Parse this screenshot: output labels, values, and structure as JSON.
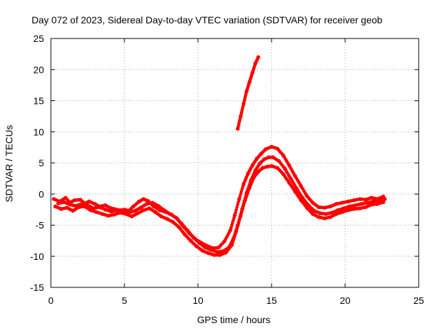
{
  "chart_data": {
    "type": "scatter",
    "title": "Day 072 of 2023, Sidereal Day-to-day VTEC variation (SDTVAR) for receiver geob",
    "xlabel": "GPS time / hours",
    "ylabel": "SDTVAR / TECUs",
    "xlim": [
      0,
      25
    ],
    "ylim": [
      -15,
      25
    ],
    "xticks": [
      0,
      5,
      10,
      15,
      20,
      25
    ],
    "yticks": [
      -15,
      -10,
      -5,
      0,
      5,
      10,
      15,
      20,
      25
    ],
    "grid": true,
    "series": [
      {
        "name": "SDTVAR",
        "color": "#ff0000",
        "segments": [
          {
            "x": [
              0.2,
              0.6,
              1.0,
              1.3,
              1.6,
              2.0,
              2.3,
              2.6,
              3.0,
              3.3,
              3.7,
              4.0,
              4.3,
              4.7,
              5.0,
              5.3,
              5.6,
              6.0,
              6.3,
              6.6,
              7.0,
              7.4,
              7.8,
              8.2,
              8.6,
              9.0,
              9.4,
              9.8,
              10.2,
              10.6,
              11.0,
              11.4,
              11.8,
              12.2,
              12.5,
              12.8,
              13.1,
              13.4,
              13.7,
              14.0,
              14.3,
              14.6,
              15.0,
              15.4,
              15.8,
              16.2,
              16.6,
              17.0,
              17.4,
              17.8,
              18.2,
              18.6,
              19.0,
              19.4,
              19.8,
              20.2,
              20.6,
              21.0,
              21.4,
              21.8,
              22.2,
              22.6
            ],
            "y": [
              -0.8,
              -1.2,
              -0.6,
              -1.4,
              -1.0,
              -0.9,
              -1.5,
              -1.2,
              -1.6,
              -2.0,
              -1.8,
              -2.2,
              -2.4,
              -2.6,
              -2.5,
              -2.7,
              -2.0,
              -1.2,
              -0.8,
              -1.1,
              -2.0,
              -2.6,
              -2.9,
              -3.3,
              -4.0,
              -5.2,
              -6.3,
              -7.2,
              -7.8,
              -8.3,
              -8.7,
              -8.6,
              -7.6,
              -5.8,
              -3.4,
              -0.8,
              1.6,
              3.3,
              4.6,
              5.7,
              6.5,
              7.2,
              7.6,
              7.3,
              6.2,
              4.6,
              2.9,
              1.3,
              -0.3,
              -1.4,
              -2.1,
              -2.2,
              -2.0,
              -1.6,
              -1.4,
              -1.2,
              -1.0,
              -0.8,
              -0.9,
              -0.6,
              -0.8,
              -0.4
            ]
          },
          {
            "x": [
              0.3,
              0.7,
              1.1,
              1.5,
              1.9,
              2.3,
              2.7,
              3.1,
              3.5,
              3.9,
              4.3,
              4.7,
              5.1,
              5.5,
              5.9,
              6.3,
              6.7,
              7.1,
              7.5,
              7.9,
              8.3,
              8.7,
              9.1,
              9.5,
              9.9,
              10.3,
              10.7,
              11.1,
              11.5,
              11.9,
              12.3,
              12.6,
              12.9,
              13.2,
              13.5,
              13.8,
              14.1,
              14.4,
              14.7,
              15.0,
              15.4,
              15.8,
              16.2,
              16.6,
              17.0,
              17.4,
              17.8,
              18.2,
              18.6,
              19.0,
              19.4,
              19.8,
              20.2,
              20.6,
              21.0,
              21.4,
              21.8,
              22.2,
              22.6
            ],
            "y": [
              -2.0,
              -2.4,
              -2.2,
              -2.7,
              -2.1,
              -2.0,
              -2.6,
              -2.9,
              -3.2,
              -3.5,
              -3.3,
              -3.0,
              -3.2,
              -3.6,
              -3.1,
              -2.6,
              -2.3,
              -2.9,
              -3.6,
              -4.0,
              -4.5,
              -5.3,
              -6.5,
              -7.5,
              -8.4,
              -9.1,
              -9.5,
              -9.8,
              -9.8,
              -9.4,
              -8.2,
              -6.0,
              -3.5,
              -1.0,
              1.0,
              2.7,
              3.6,
              4.2,
              4.4,
              4.5,
              4.2,
              3.2,
              1.8,
              0.4,
              -1.0,
              -2.2,
              -3.2,
              -3.7,
              -3.9,
              -3.7,
              -3.2,
              -2.9,
              -2.6,
              -2.4,
              -2.3,
              -2.1,
              -1.7,
              -1.6,
              -1.3
            ]
          },
          {
            "x": [
              0.5,
              0.9,
              1.3,
              1.7,
              2.1,
              2.5,
              2.9,
              3.3,
              3.7,
              4.1,
              4.5,
              4.9,
              5.3,
              5.7,
              6.1,
              6.5,
              6.9,
              7.3,
              7.7,
              8.1,
              8.5,
              8.9,
              9.3,
              9.7,
              10.1,
              10.5,
              10.9,
              11.3,
              11.7,
              12.1,
              12.4,
              12.7,
              13.0,
              13.3,
              13.6,
              13.9,
              14.2,
              14.5,
              14.8,
              15.1,
              15.5,
              15.9,
              16.3,
              16.7,
              17.1,
              17.5,
              17.9,
              18.3,
              18.7,
              19.1,
              19.5,
              19.9,
              20.3,
              20.7,
              21.1,
              21.5,
              21.9,
              22.3,
              22.7
            ],
            "y": [
              -1.5,
              -1.3,
              -1.7,
              -1.9,
              -1.6,
              -1.8,
              -2.3,
              -2.1,
              -2.5,
              -2.8,
              -2.6,
              -2.9,
              -3.0,
              -2.7,
              -2.2,
              -1.6,
              -1.4,
              -1.9,
              -2.6,
              -3.2,
              -3.8,
              -4.8,
              -5.9,
              -7.0,
              -7.9,
              -8.6,
              -9.0,
              -9.3,
              -9.2,
              -8.6,
              -7.2,
              -5.0,
              -2.4,
              0.2,
              2.2,
              3.8,
              4.9,
              5.6,
              5.9,
              5.9,
              5.3,
              4.1,
              2.5,
              0.9,
              -0.6,
              -1.8,
              -2.7,
              -3.1,
              -3.2,
              -3.0,
              -2.6,
              -2.3,
              -2.0,
              -1.8,
              -1.6,
              -1.4,
              -1.2,
              -1.0,
              -0.8
            ]
          },
          {
            "x": [
              12.7,
              12.9,
              13.1,
              13.3,
              13.5,
              13.7,
              13.9,
              14.1
            ],
            "y": [
              10.5,
              12.5,
              14.5,
              16.5,
              18.0,
              19.5,
              21.0,
              22.0
            ]
          }
        ]
      }
    ]
  }
}
